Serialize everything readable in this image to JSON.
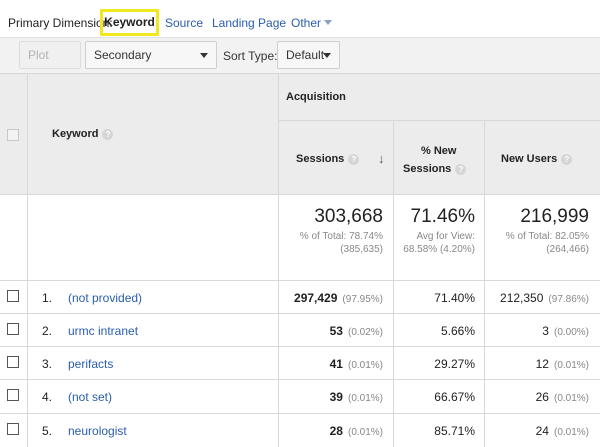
{
  "dimensions": {
    "label": "Primary Dimension:",
    "active": "Keyword",
    "links": [
      "Source",
      "Landing Page",
      "Other"
    ]
  },
  "controls": {
    "plot_rows": "Plot Rows",
    "secondary_dimension": "Secondary dimension",
    "sort_type_label": "Sort Type:",
    "sort_type_value": "Default"
  },
  "table": {
    "keyword_header": "Keyword",
    "group_header": "Acquisition",
    "columns": {
      "sessions": "Sessions",
      "new_sessions_line1": "% New",
      "new_sessions_line2": "Sessions",
      "new_users": "New Users"
    },
    "totals": {
      "sessions": "303,668",
      "sessions_sub1": "% of Total: 78.74%",
      "sessions_sub2": "(385,635)",
      "new_sessions": "71.46%",
      "new_sessions_sub1": "Avg for View:",
      "new_sessions_sub2": "68.58% (4.20%)",
      "new_users": "216,999",
      "new_users_sub1": "% of Total: 82.05%",
      "new_users_sub2": "(264,466)"
    },
    "rows": [
      {
        "num": "1.",
        "keyword": "(not provided)",
        "sessions": "297,429",
        "sessions_pct": "(97.95%)",
        "new_sessions": "71.40%",
        "new_users": "212,350",
        "new_users_pct": "(97.86%)"
      },
      {
        "num": "2.",
        "keyword": "urmc intranet",
        "sessions": "53",
        "sessions_pct": "(0.02%)",
        "new_sessions": "5.66%",
        "new_users": "3",
        "new_users_pct": "(0.00%)"
      },
      {
        "num": "3.",
        "keyword": "perifacts",
        "sessions": "41",
        "sessions_pct": "(0.01%)",
        "new_sessions": "29.27%",
        "new_users": "12",
        "new_users_pct": "(0.01%)"
      },
      {
        "num": "4.",
        "keyword": "(not set)",
        "sessions": "39",
        "sessions_pct": "(0.01%)",
        "new_sessions": "66.67%",
        "new_users": "26",
        "new_users_pct": "(0.01%)"
      },
      {
        "num": "5.",
        "keyword": "neurologist",
        "sessions": "28",
        "sessions_pct": "(0.01%)",
        "new_sessions": "85.71%",
        "new_users": "24",
        "new_users_pct": "(0.01%)"
      }
    ]
  }
}
